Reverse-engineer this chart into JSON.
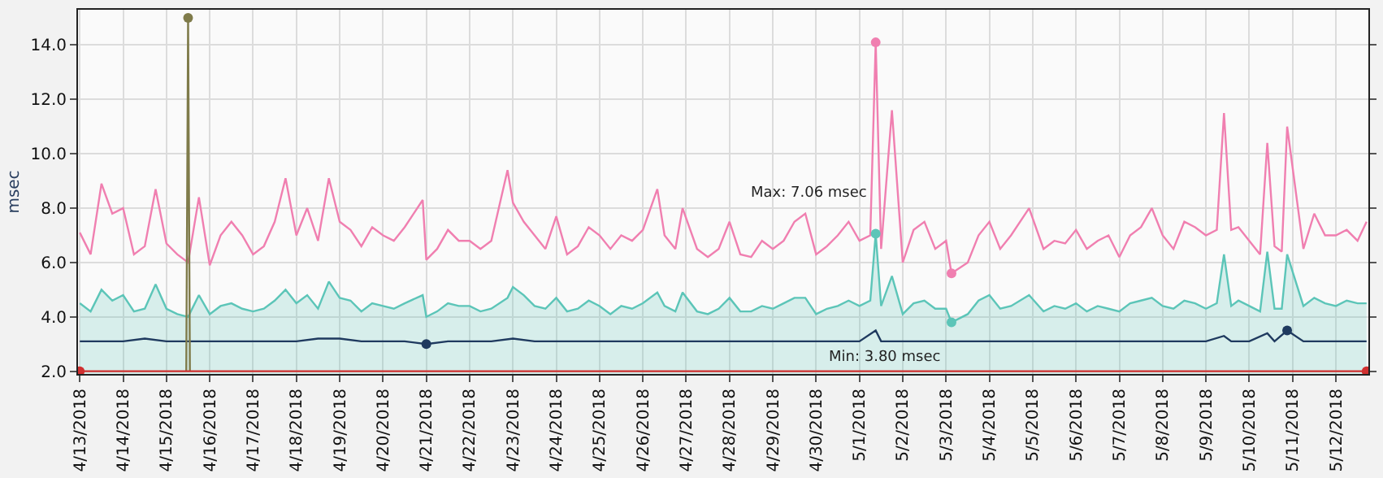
{
  "chart_data": {
    "type": "line",
    "ylabel": "msec",
    "xlim": [
      "2018-04-12T23:00",
      "2018-05-12T18:00"
    ],
    "xticks": [
      {
        "value": "2018-04-13",
        "label": "4/13/2018"
      },
      {
        "value": "2018-04-14",
        "label": "4/14/2018"
      },
      {
        "value": "2018-04-15",
        "label": "4/15/2018"
      },
      {
        "value": "2018-04-16",
        "label": "4/16/2018"
      },
      {
        "value": "2018-04-17",
        "label": "4/17/2018"
      },
      {
        "value": "2018-04-18",
        "label": "4/18/2018"
      },
      {
        "value": "2018-04-19",
        "label": "4/19/2018"
      },
      {
        "value": "2018-04-20",
        "label": "4/20/2018"
      },
      {
        "value": "2018-04-21",
        "label": "4/21/2018"
      },
      {
        "value": "2018-04-22",
        "label": "4/22/2018"
      },
      {
        "value": "2018-04-23",
        "label": "4/23/2018"
      },
      {
        "value": "2018-04-24",
        "label": "4/24/2018"
      },
      {
        "value": "2018-04-25",
        "label": "4/25/2018"
      },
      {
        "value": "2018-04-26",
        "label": "4/26/2018"
      },
      {
        "value": "2018-04-27",
        "label": "4/27/2018"
      },
      {
        "value": "2018-04-28",
        "label": "4/28/2018"
      },
      {
        "value": "2018-04-29",
        "label": "4/29/2018"
      },
      {
        "value": "2018-04-30",
        "label": "4/30/2018"
      },
      {
        "value": "2018-05-01",
        "label": "5/1/2018"
      },
      {
        "value": "2018-05-02",
        "label": "5/2/2018"
      },
      {
        "value": "2018-05-03",
        "label": "5/3/2018"
      },
      {
        "value": "2018-05-04",
        "label": "5/4/2018"
      },
      {
        "value": "2018-05-05",
        "label": "5/5/2018"
      },
      {
        "value": "2018-05-06",
        "label": "5/6/2018"
      },
      {
        "value": "2018-05-07",
        "label": "5/7/2018"
      },
      {
        "value": "2018-05-08",
        "label": "5/8/2018"
      },
      {
        "value": "2018-05-09",
        "label": "5/9/2018"
      },
      {
        "value": "2018-05-10",
        "label": "5/10/2018"
      },
      {
        "value": "2018-05-11",
        "label": "5/11/2018"
      },
      {
        "value": "2018-05-12",
        "label": "5/12/2018"
      }
    ],
    "ylim": [
      1.9,
      15.3
    ],
    "yticks": [
      {
        "value": 2,
        "label": "2.0"
      },
      {
        "value": 4,
        "label": "4.0"
      },
      {
        "value": 6,
        "label": "6.0"
      },
      {
        "value": 8,
        "label": "8.0"
      },
      {
        "value": 10,
        "label": "10.0"
      },
      {
        "value": 12,
        "label": "12.0"
      },
      {
        "value": 14,
        "label": "14.0"
      }
    ],
    "grid": true,
    "marker": "none",
    "line_style": "solid",
    "annotations": [
      {
        "text": "Max: 7.06 msec",
        "x": "2018-05-01T09:00",
        "y": 7.06
      },
      {
        "text": "Min: 3.80 msec",
        "x": "2018-05-03T03:00",
        "y": 3.8
      }
    ],
    "series": [
      {
        "type": "area",
        "color": "#5cc5b8",
        "x": [
          "2018-04-13T00:00",
          "2018-04-13T06:00",
          "2018-04-13T12:00",
          "2018-04-13T18:00",
          "2018-04-14T00:00",
          "2018-04-14T06:00",
          "2018-04-14T12:00",
          "2018-04-14T18:00",
          "2018-04-15T00:00",
          "2018-04-15T06:00",
          "2018-04-15T12:00",
          "2018-04-15T18:00",
          "2018-04-16T00:00",
          "2018-04-16T06:00",
          "2018-04-16T12:00",
          "2018-04-16T18:00",
          "2018-04-17T00:00",
          "2018-04-17T06:00",
          "2018-04-17T12:00",
          "2018-04-17T18:00",
          "2018-04-18T00:00",
          "2018-04-18T06:00",
          "2018-04-18T12:00",
          "2018-04-18T18:00",
          "2018-04-19T00:00",
          "2018-04-19T06:00",
          "2018-04-19T12:00",
          "2018-04-19T18:00",
          "2018-04-20T00:00",
          "2018-04-20T06:00",
          "2018-04-20T12:00",
          "2018-04-20T22:00",
          "2018-04-21T00:00",
          "2018-04-21T06:00",
          "2018-04-21T12:00",
          "2018-04-21T18:00",
          "2018-04-22T00:00",
          "2018-04-22T06:00",
          "2018-04-22T12:00",
          "2018-04-22T21:00",
          "2018-04-23T00:00",
          "2018-04-23T06:00",
          "2018-04-23T12:00",
          "2018-04-23T18:00",
          "2018-04-24T00:00",
          "2018-04-24T06:00",
          "2018-04-24T12:00",
          "2018-04-24T18:00",
          "2018-04-25T00:00",
          "2018-04-25T06:00",
          "2018-04-25T12:00",
          "2018-04-25T18:00",
          "2018-04-26T00:00",
          "2018-04-26T08:00",
          "2018-04-26T12:00",
          "2018-04-26T18:00",
          "2018-04-26T22:00",
          "2018-04-27T06:00",
          "2018-04-27T12:00",
          "2018-04-27T18:00",
          "2018-04-28T00:00",
          "2018-04-28T06:00",
          "2018-04-28T12:00",
          "2018-04-28T18:00",
          "2018-04-29T00:00",
          "2018-04-29T06:00",
          "2018-04-29T12:00",
          "2018-04-29T18:00",
          "2018-04-30T00:00",
          "2018-04-30T06:00",
          "2018-04-30T12:00",
          "2018-04-30T18:00",
          "2018-05-01T00:00",
          "2018-05-01T06:00",
          "2018-05-01T09:00",
          "2018-05-01T12:00",
          "2018-05-01T18:00",
          "2018-05-02T00:00",
          "2018-05-02T06:00",
          "2018-05-02T12:00",
          "2018-05-02T18:00",
          "2018-05-03T00:00",
          "2018-05-03T03:00",
          "2018-05-03T12:00",
          "2018-05-03T18:00",
          "2018-05-04T00:00",
          "2018-05-04T06:00",
          "2018-05-04T12:00",
          "2018-05-04T22:00",
          "2018-05-05T06:00",
          "2018-05-05T12:00",
          "2018-05-05T18:00",
          "2018-05-06T00:00",
          "2018-05-06T06:00",
          "2018-05-06T12:00",
          "2018-05-06T18:00",
          "2018-05-07T00:00",
          "2018-05-07T06:00",
          "2018-05-07T12:00",
          "2018-05-07T18:00",
          "2018-05-08T00:00",
          "2018-05-08T06:00",
          "2018-05-08T12:00",
          "2018-05-08T18:00",
          "2018-05-09T00:00",
          "2018-05-09T06:00",
          "2018-05-09T10:00",
          "2018-05-09T14:00",
          "2018-05-09T18:00",
          "2018-05-10T00:00",
          "2018-05-10T06:00",
          "2018-05-10T10:00",
          "2018-05-10T14:00",
          "2018-05-10T18:00",
          "2018-05-10T21:00",
          "2018-05-11T06:00",
          "2018-05-11T12:00",
          "2018-05-11T18:00",
          "2018-05-12T00:00",
          "2018-05-12T06:00",
          "2018-05-12T12:00",
          "2018-05-12T17:00"
        ],
        "values": [
          4.5,
          4.2,
          5.0,
          4.6,
          4.8,
          4.2,
          4.3,
          5.2,
          4.3,
          4.1,
          4.0,
          4.8,
          4.1,
          4.4,
          4.5,
          4.3,
          4.2,
          4.3,
          4.6,
          5.0,
          4.5,
          4.8,
          4.3,
          5.3,
          4.7,
          4.6,
          4.2,
          4.5,
          4.4,
          4.3,
          4.5,
          4.8,
          4.0,
          4.2,
          4.5,
          4.4,
          4.4,
          4.2,
          4.3,
          4.7,
          5.1,
          4.8,
          4.4,
          4.3,
          4.7,
          4.2,
          4.3,
          4.6,
          4.4,
          4.1,
          4.4,
          4.3,
          4.5,
          4.9,
          4.4,
          4.2,
          4.9,
          4.2,
          4.1,
          4.3,
          4.7,
          4.2,
          4.2,
          4.4,
          4.3,
          4.5,
          4.7,
          4.7,
          4.1,
          4.3,
          4.4,
          4.6,
          4.4,
          4.6,
          7.06,
          4.4,
          5.5,
          4.1,
          4.5,
          4.6,
          4.3,
          4.3,
          3.8,
          4.1,
          4.6,
          4.8,
          4.3,
          4.4,
          4.8,
          4.2,
          4.4,
          4.3,
          4.5,
          4.2,
          4.4,
          4.3,
          4.2,
          4.5,
          4.6,
          4.7,
          4.4,
          4.3,
          4.6,
          4.5,
          4.3,
          4.5,
          6.3,
          4.4,
          4.6,
          4.4,
          4.2,
          6.4,
          4.3,
          4.3,
          6.3,
          4.4,
          4.7,
          4.5,
          4.4,
          4.6,
          4.5,
          4.5
        ]
      },
      {
        "color": "#f07fb0",
        "x": [
          "2018-04-13T00:00",
          "2018-04-13T06:00",
          "2018-04-13T12:00",
          "2018-04-13T18:00",
          "2018-04-14T00:00",
          "2018-04-14T06:00",
          "2018-04-14T12:00",
          "2018-04-14T18:00",
          "2018-04-15T00:00",
          "2018-04-15T06:00",
          "2018-04-15T12:00",
          "2018-04-15T18:00",
          "2018-04-16T00:00",
          "2018-04-16T06:00",
          "2018-04-16T12:00",
          "2018-04-16T18:00",
          "2018-04-17T00:00",
          "2018-04-17T06:00",
          "2018-04-17T12:00",
          "2018-04-17T18:00",
          "2018-04-18T00:00",
          "2018-04-18T06:00",
          "2018-04-18T12:00",
          "2018-04-18T18:00",
          "2018-04-19T00:00",
          "2018-04-19T06:00",
          "2018-04-19T12:00",
          "2018-04-19T18:00",
          "2018-04-20T00:00",
          "2018-04-20T06:00",
          "2018-04-20T12:00",
          "2018-04-20T22:00",
          "2018-04-21T00:00",
          "2018-04-21T06:00",
          "2018-04-21T12:00",
          "2018-04-21T18:00",
          "2018-04-22T00:00",
          "2018-04-22T06:00",
          "2018-04-22T12:00",
          "2018-04-22T21:00",
          "2018-04-23T00:00",
          "2018-04-23T06:00",
          "2018-04-23T12:00",
          "2018-04-23T18:00",
          "2018-04-24T00:00",
          "2018-04-24T06:00",
          "2018-04-24T12:00",
          "2018-04-24T18:00",
          "2018-04-25T00:00",
          "2018-04-25T06:00",
          "2018-04-25T12:00",
          "2018-04-25T18:00",
          "2018-04-26T00:00",
          "2018-04-26T08:00",
          "2018-04-26T12:00",
          "2018-04-26T18:00",
          "2018-04-26T22:00",
          "2018-04-27T06:00",
          "2018-04-27T12:00",
          "2018-04-27T18:00",
          "2018-04-28T00:00",
          "2018-04-28T06:00",
          "2018-04-28T12:00",
          "2018-04-28T18:00",
          "2018-04-29T00:00",
          "2018-04-29T06:00",
          "2018-04-29T12:00",
          "2018-04-29T18:00",
          "2018-04-30T00:00",
          "2018-04-30T06:00",
          "2018-04-30T12:00",
          "2018-04-30T18:00",
          "2018-05-01T00:00",
          "2018-05-01T06:00",
          "2018-05-01T09:00",
          "2018-05-01T12:00",
          "2018-05-01T18:00",
          "2018-05-02T00:00",
          "2018-05-02T06:00",
          "2018-05-02T12:00",
          "2018-05-02T18:00",
          "2018-05-03T00:00",
          "2018-05-03T03:00",
          "2018-05-03T12:00",
          "2018-05-03T18:00",
          "2018-05-04T00:00",
          "2018-05-04T06:00",
          "2018-05-04T12:00",
          "2018-05-04T22:00",
          "2018-05-05T06:00",
          "2018-05-05T12:00",
          "2018-05-05T18:00",
          "2018-05-06T00:00",
          "2018-05-06T06:00",
          "2018-05-06T12:00",
          "2018-05-06T18:00",
          "2018-05-07T00:00",
          "2018-05-07T06:00",
          "2018-05-07T12:00",
          "2018-05-07T18:00",
          "2018-05-08T00:00",
          "2018-05-08T06:00",
          "2018-05-08T12:00",
          "2018-05-08T18:00",
          "2018-05-09T00:00",
          "2018-05-09T06:00",
          "2018-05-09T10:00",
          "2018-05-09T14:00",
          "2018-05-09T18:00",
          "2018-05-10T00:00",
          "2018-05-10T06:00",
          "2018-05-10T10:00",
          "2018-05-10T14:00",
          "2018-05-10T18:00",
          "2018-05-10T21:00",
          "2018-05-11T06:00",
          "2018-05-11T12:00",
          "2018-05-11T18:00",
          "2018-05-12T00:00",
          "2018-05-12T06:00",
          "2018-05-12T12:00",
          "2018-05-12T17:00"
        ],
        "values": [
          7.1,
          6.3,
          8.9,
          7.8,
          8.0,
          6.3,
          6.6,
          8.7,
          6.7,
          6.3,
          6.0,
          8.4,
          5.9,
          7.0,
          7.5,
          7.0,
          6.3,
          6.6,
          7.5,
          9.1,
          7.0,
          8.0,
          6.8,
          9.1,
          7.5,
          7.2,
          6.6,
          7.3,
          7.0,
          6.8,
          7.3,
          8.3,
          6.1,
          6.5,
          7.2,
          6.8,
          6.8,
          6.5,
          6.8,
          9.4,
          8.2,
          7.5,
          7.0,
          6.5,
          7.7,
          6.3,
          6.6,
          7.3,
          7.0,
          6.5,
          7.0,
          6.8,
          7.2,
          8.7,
          7.0,
          6.5,
          8.0,
          6.5,
          6.2,
          6.5,
          7.5,
          6.3,
          6.2,
          6.8,
          6.5,
          6.8,
          7.5,
          7.8,
          6.3,
          6.6,
          7.0,
          7.5,
          6.8,
          7.0,
          14.1,
          6.5,
          11.6,
          6.0,
          7.2,
          7.5,
          6.5,
          6.8,
          5.6,
          6.0,
          7.0,
          7.5,
          6.5,
          7.0,
          8.0,
          6.5,
          6.8,
          6.7,
          7.2,
          6.5,
          6.8,
          7.0,
          6.2,
          7.0,
          7.3,
          8.0,
          7.0,
          6.5,
          7.5,
          7.3,
          7.0,
          7.2,
          11.5,
          7.2,
          7.3,
          6.8,
          6.3,
          10.4,
          6.6,
          6.4,
          11.0,
          6.5,
          7.8,
          7.0,
          7.0,
          7.2,
          6.8,
          7.5
        ]
      },
      {
        "color": "#1f3a5f",
        "x": [
          "2018-04-13T00:00",
          "2018-04-13T12:00",
          "2018-04-14T00:00",
          "2018-04-14T12:00",
          "2018-04-15T00:00",
          "2018-04-15T12:00",
          "2018-04-16T00:00",
          "2018-04-16T12:00",
          "2018-04-17T00:00",
          "2018-04-17T12:00",
          "2018-04-18T00:00",
          "2018-04-18T12:00",
          "2018-04-19T00:00",
          "2018-04-19T12:00",
          "2018-04-20T00:00",
          "2018-04-20T12:00",
          "2018-04-21T00:00",
          "2018-04-21T12:00",
          "2018-04-22T00:00",
          "2018-04-22T12:00",
          "2018-04-23T00:00",
          "2018-04-23T12:00",
          "2018-04-24T00:00",
          "2018-04-24T12:00",
          "2018-04-25T00:00",
          "2018-04-25T12:00",
          "2018-04-26T00:00",
          "2018-04-26T12:00",
          "2018-04-27T00:00",
          "2018-04-27T12:00",
          "2018-04-28T00:00",
          "2018-04-28T12:00",
          "2018-04-29T00:00",
          "2018-04-29T12:00",
          "2018-04-30T00:00",
          "2018-04-30T12:00",
          "2018-05-01T00:00",
          "2018-05-01T09:00",
          "2018-05-01T12:00",
          "2018-05-02T00:00",
          "2018-05-02T12:00",
          "2018-05-03T00:00",
          "2018-05-03T12:00",
          "2018-05-04T00:00",
          "2018-05-04T12:00",
          "2018-05-05T00:00",
          "2018-05-05T12:00",
          "2018-05-06T00:00",
          "2018-05-06T12:00",
          "2018-05-07T00:00",
          "2018-05-07T12:00",
          "2018-05-08T00:00",
          "2018-05-08T12:00",
          "2018-05-09T00:00",
          "2018-05-09T10:00",
          "2018-05-09T14:00",
          "2018-05-10T00:00",
          "2018-05-10T10:00",
          "2018-05-10T14:00",
          "2018-05-10T21:00",
          "2018-05-11T06:00",
          "2018-05-11T12:00",
          "2018-05-12T00:00",
          "2018-05-12T12:00",
          "2018-05-12T17:00"
        ],
        "values": [
          3.1,
          3.1,
          3.1,
          3.2,
          3.1,
          3.1,
          3.1,
          3.1,
          3.1,
          3.1,
          3.1,
          3.2,
          3.2,
          3.1,
          3.1,
          3.1,
          3.0,
          3.1,
          3.1,
          3.1,
          3.2,
          3.1,
          3.1,
          3.1,
          3.1,
          3.1,
          3.1,
          3.1,
          3.1,
          3.1,
          3.1,
          3.1,
          3.1,
          3.1,
          3.1,
          3.1,
          3.1,
          3.5,
          3.1,
          3.1,
          3.1,
          3.1,
          3.1,
          3.1,
          3.1,
          3.1,
          3.1,
          3.1,
          3.1,
          3.1,
          3.1,
          3.1,
          3.1,
          3.1,
          3.3,
          3.1,
          3.1,
          3.4,
          3.1,
          3.5,
          3.1,
          3.1,
          3.1,
          3.1,
          3.1
        ]
      },
      {
        "color": "#7f7b4a",
        "x": [
          "2018-04-15T11:00",
          "2018-04-15T12:00",
          "2018-04-15T13:00"
        ],
        "values": [
          2.0,
          15.0,
          2.0
        ]
      },
      {
        "color": "#d03030",
        "marker": "circle",
        "x": [
          "2018-04-13T00:00",
          "2018-05-12T17:00"
        ],
        "values": [
          2.0,
          2.0
        ]
      },
      {
        "type": "scatter",
        "color": "#f07fb0",
        "marker": "circle",
        "x": [
          "2018-05-01T09:00",
          "2018-05-03T03:00"
        ],
        "values": [
          14.1,
          5.6
        ]
      },
      {
        "type": "scatter",
        "color": "#5cc5b8",
        "marker": "circle",
        "x": [
          "2018-05-01T09:00",
          "2018-05-03T03:00"
        ],
        "values": [
          7.06,
          3.8
        ]
      },
      {
        "type": "scatter",
        "color": "#1f3a5f",
        "marker": "circle",
        "x": [
          "2018-04-21T00:00",
          "2018-05-10T21:00"
        ],
        "values": [
          3.0,
          3.5
        ]
      },
      {
        "type": "scatter",
        "color": "#7f7b4a",
        "marker": "circle",
        "x": [
          "2018-04-15T12:00"
        ],
        "values": [
          15.0
        ]
      }
    ]
  }
}
